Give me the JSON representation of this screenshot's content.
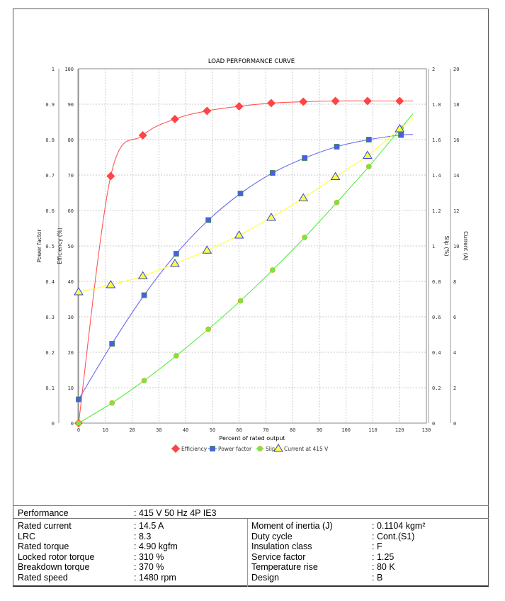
{
  "chart_data": {
    "type": "line",
    "title": "LOAD PERFORMANCE CURVE",
    "xlabel": "Percent of rated output",
    "xlim": [
      0,
      130
    ],
    "xticks": [
      0,
      10,
      20,
      30,
      40,
      50,
      60,
      70,
      80,
      90,
      100,
      110,
      120,
      130
    ],
    "grid": true,
    "legend_position": "bottom",
    "axes": [
      {
        "id": "pf",
        "label": "Power factor",
        "side": "left-outer",
        "lim": [
          0,
          1
        ],
        "ticks": [
          "0",
          "0.1",
          "0.2",
          "0.3",
          "0.4",
          "0.5",
          "0.6",
          "0.7",
          "0.8",
          "0.9",
          "1"
        ]
      },
      {
        "id": "eff",
        "label": "Efficiency (%)",
        "side": "left-inner",
        "lim": [
          0,
          100
        ],
        "ticks": [
          "0",
          "10",
          "20",
          "30",
          "40",
          "50",
          "60",
          "70",
          "80",
          "90",
          "100"
        ]
      },
      {
        "id": "slip",
        "label": "Slip (%)",
        "side": "right-inner",
        "lim": [
          0,
          2
        ],
        "ticks": [
          "0",
          "0.2",
          "0.4",
          "0.6",
          "0.8",
          "1",
          "1.2",
          "1.4",
          "1.6",
          "1.8",
          "2"
        ]
      },
      {
        "id": "cur",
        "label": "Current (A)",
        "side": "right-outer",
        "lim": [
          0,
          20
        ],
        "ticks": [
          "0",
          "2",
          "4",
          "6",
          "8",
          "10",
          "12",
          "14",
          "16",
          "18",
          "20"
        ]
      }
    ],
    "series": [
      {
        "name": "Efficiency",
        "axis": "eff",
        "color": "#ff4444",
        "marker": "diamond",
        "x": [
          0,
          12,
          24,
          36,
          48,
          60,
          72,
          84,
          96,
          108,
          120
        ],
        "values": [
          0,
          69.7,
          81.2,
          85.8,
          88.1,
          89.4,
          90.3,
          90.7,
          90.9,
          90.9,
          90.9
        ]
      },
      {
        "name": "Power factor",
        "axis": "pf",
        "color": "#4a5cf0",
        "marker": "square",
        "x": [
          0,
          12.5,
          24.5,
          36.5,
          48.5,
          60.5,
          72.5,
          84.5,
          96.5,
          108.5,
          120.5
        ],
        "values": [
          0.067,
          0.224,
          0.361,
          0.478,
          0.573,
          0.648,
          0.706,
          0.748,
          0.78,
          0.8,
          0.813
        ]
      },
      {
        "name": "Slip",
        "axis": "slip",
        "color": "#66ee44",
        "marker": "circle",
        "x": [
          0,
          12.5,
          24.5,
          36.5,
          48.5,
          60.5,
          72.5,
          84.5,
          96.5,
          108.5,
          120.5
        ],
        "values": [
          0,
          0.114,
          0.24,
          0.38,
          0.53,
          0.69,
          0.864,
          1.048,
          1.245,
          1.448,
          1.665
        ]
      },
      {
        "name": "Current at 415 V",
        "axis": "cur",
        "color": "#ffff44",
        "marker": "triangle",
        "x": [
          0,
          12,
          24,
          36,
          48,
          60,
          72,
          84,
          96,
          108,
          120
        ],
        "values": [
          7.4,
          7.8,
          8.3,
          9.0,
          9.75,
          10.6,
          11.6,
          12.7,
          13.9,
          15.1,
          16.6
        ]
      }
    ]
  },
  "specs": {
    "performance": {
      "label": "Performance",
      "value": ": 415 V 50 Hz 4P IE3"
    },
    "left": [
      {
        "label": "Rated current",
        "value": ": 14.5 A"
      },
      {
        "label": "LRC",
        "value": ": 8.3"
      },
      {
        "label": "Rated torque",
        "value": ": 4.90 kgfm"
      },
      {
        "label": "Locked rotor torque",
        "value": ": 310 %"
      },
      {
        "label": "Breakdown torque",
        "value": ": 370 %"
      },
      {
        "label": "Rated speed",
        "value": ": 1480 rpm"
      }
    ],
    "right": [
      {
        "label": "Moment of inertia (J)",
        "value": ": 0.1104 kgm²"
      },
      {
        "label": "Duty cycle",
        "value": ": Cont.(S1)"
      },
      {
        "label": "Insulation class",
        "value": ": F"
      },
      {
        "label": "Service factor",
        "value": ": 1.25"
      },
      {
        "label": "Temperature rise",
        "value": ": 80 K"
      },
      {
        "label": "Design",
        "value": ": B"
      }
    ]
  }
}
